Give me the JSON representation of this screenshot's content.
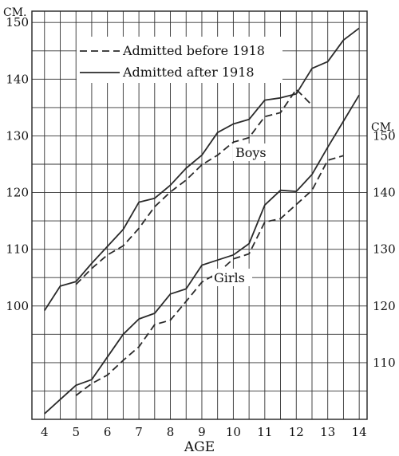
{
  "chart_data": {
    "type": "line",
    "xlabel": "AGE",
    "x_ticks": [
      "4",
      "5",
      "6",
      "7",
      "8",
      "9",
      "10",
      "11",
      "12",
      "13",
      "14"
    ],
    "xlim": [
      3.6,
      14.25
    ],
    "left_axis": {
      "unit": "CM.",
      "ticks": [
        "100",
        "110",
        "120",
        "130",
        "140",
        "150"
      ],
      "lim": [
        80,
        152
      ]
    },
    "right_axis": {
      "unit": "CM.",
      "ticks": [
        "110",
        "120",
        "130",
        "140",
        "150"
      ],
      "lim": [
        100,
        172
      ]
    },
    "legend": {
      "position": "top-left",
      "entries": [
        {
          "label": "Admitted before 1918",
          "style": "dashed"
        },
        {
          "label": "Admitted after 1918",
          "style": "solid"
        }
      ]
    },
    "annotations": {
      "boys": "Boys",
      "girls": "Girls"
    },
    "grid": true,
    "series": [
      {
        "name": "Admitted after 1918",
        "group": "Boys",
        "style": "solid",
        "axis": "left",
        "x": [
          4,
          4.5,
          5,
          5.5,
          6,
          6.5,
          7,
          7.5,
          8,
          8.5,
          9,
          9.5,
          10,
          10.5,
          11,
          11.5,
          12,
          12.5,
          13,
          13.5,
          14
        ],
        "y": [
          99.2,
          103.5,
          104.3,
          107.5,
          110.5,
          113.5,
          118.3,
          119.0,
          121.3,
          124.3,
          126.6,
          130.6,
          132.1,
          132.9,
          136.3,
          136.7,
          137.4,
          141.9,
          143.1,
          146.9,
          149.0
        ]
      },
      {
        "name": "Admitted before 1918",
        "group": "Boys",
        "style": "dashed",
        "axis": "left",
        "x": [
          5,
          5.5,
          6,
          6.5,
          7,
          7.5,
          8,
          8.5,
          9,
          9.5,
          10,
          10.5,
          11,
          11.5,
          12,
          12.5
        ],
        "y": [
          103.8,
          106.6,
          109.0,
          110.6,
          113.7,
          117.5,
          120.1,
          122.2,
          124.9,
          126.6,
          128.9,
          129.7,
          133.4,
          134.1,
          138.2,
          135.4
        ]
      },
      {
        "name": "Admitted after 1918",
        "group": "Girls",
        "style": "solid",
        "axis": "right",
        "x": [
          4,
          4.5,
          5,
          5.5,
          6,
          6.5,
          7,
          7.5,
          8,
          8.5,
          9,
          9.5,
          10,
          10.5,
          11,
          11.5,
          12,
          12.5,
          13,
          13.5,
          14
        ],
        "y": [
          101.0,
          103.5,
          106.0,
          107.0,
          111.0,
          115.0,
          117.7,
          118.7,
          122.1,
          123.0,
          127.2,
          128.1,
          129.0,
          131.0,
          137.8,
          140.4,
          140.2,
          143.2,
          148.0,
          152.6,
          157.2
        ]
      },
      {
        "name": "Admitted before 1918",
        "group": "Girls",
        "style": "dashed",
        "axis": "right",
        "x": [
          5,
          5.5,
          6,
          6.5,
          7,
          7.5,
          8,
          8.5,
          9,
          9.5,
          10,
          10.5,
          11,
          11.5,
          12,
          12.5,
          13,
          13.5
        ],
        "y": [
          104.2,
          106.3,
          107.8,
          110.4,
          112.8,
          116.7,
          117.5,
          120.8,
          124.2,
          125.8,
          128.3,
          129.2,
          134.8,
          135.4,
          137.9,
          140.4,
          145.7,
          146.5
        ]
      }
    ]
  }
}
